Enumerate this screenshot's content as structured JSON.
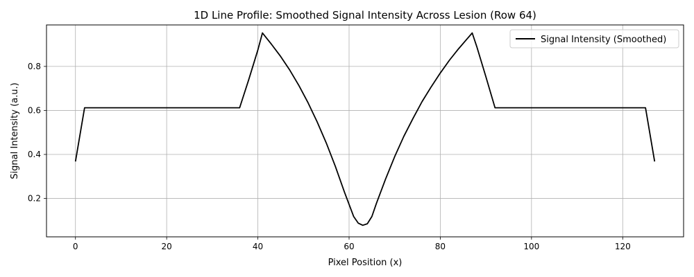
{
  "chart_data": {
    "type": "line",
    "title": "1D Line Profile: Smoothed Signal Intensity Across Lesion (Row 64)",
    "xlabel": "Pixel Position (x)",
    "ylabel": "Signal Intensity (a.u.)",
    "xlim": [
      -6.35,
      133.35
    ],
    "ylim": [
      0.0255,
      0.9885
    ],
    "xticks": [
      0,
      20,
      40,
      60,
      80,
      100,
      120
    ],
    "xtick_labels": [
      "0",
      "20",
      "40",
      "60",
      "80",
      "100",
      "120"
    ],
    "yticks": [
      0.2,
      0.4,
      0.6,
      0.8
    ],
    "ytick_labels": [
      "0.2",
      "0.4",
      "0.6",
      "0.8"
    ],
    "grid": true,
    "legend_position": "top-right",
    "series": [
      {
        "name": "Signal Intensity (Smoothed)",
        "color": "#000000",
        "x": [
          0,
          2,
          10,
          20,
          30,
          36,
          38,
          40,
          41,
          43,
          45,
          47,
          49,
          51,
          53,
          55,
          57,
          59,
          61,
          62,
          63,
          64,
          65,
          66,
          68,
          70,
          72,
          74,
          76,
          78,
          80,
          82,
          84,
          86,
          87,
          88,
          90,
          92,
          100,
          110,
          120,
          125,
          127
        ],
        "y": [
          0.368,
          0.612,
          0.612,
          0.612,
          0.612,
          0.612,
          0.74,
          0.875,
          0.952,
          0.9,
          0.845,
          0.783,
          0.713,
          0.635,
          0.548,
          0.452,
          0.345,
          0.228,
          0.118,
          0.088,
          0.078,
          0.085,
          0.118,
          0.178,
          0.288,
          0.39,
          0.482,
          0.563,
          0.64,
          0.707,
          0.77,
          0.828,
          0.88,
          0.928,
          0.952,
          0.89,
          0.753,
          0.612,
          0.612,
          0.612,
          0.612,
          0.612,
          0.368
        ]
      }
    ]
  }
}
